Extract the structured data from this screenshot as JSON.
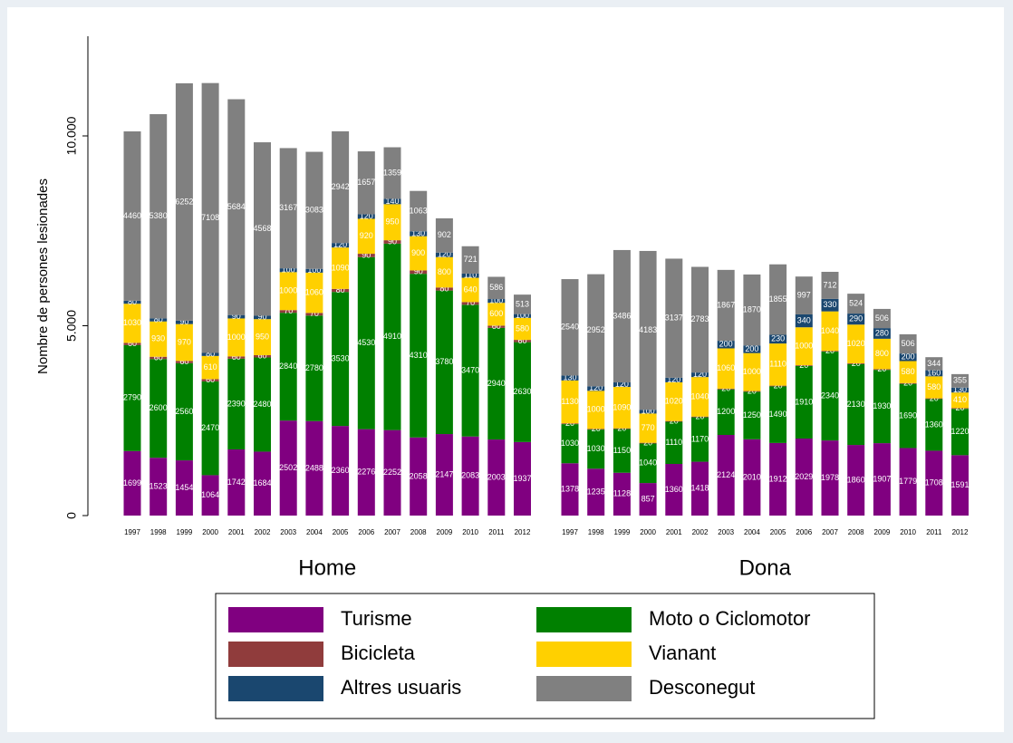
{
  "chart_data": {
    "type": "stacked-bar",
    "y_label": "Nombre de persones lesionades",
    "ylim": [
      0,
      12625
    ],
    "yticks": [
      0,
      {
        "value": 5000,
        "label": "5.000"
      },
      {
        "value": 10000,
        "label": "10.000"
      }
    ],
    "groups": [
      "Home",
      "Dona"
    ],
    "categories": [
      "1997",
      "1998",
      "1999",
      "2000",
      "2001",
      "2002",
      "2003",
      "2004",
      "2005",
      "2006",
      "2007",
      "2008",
      "2009",
      "2010",
      "2011",
      "2012"
    ],
    "series": [
      {
        "name": "Turisme",
        "color": "#800080",
        "values": [
          [
            1699,
            1523,
            1454,
            1064,
            1742,
            1684,
            2502,
            2488,
            2360,
            2276,
            2252,
            2058,
            2147,
            2083,
            2003,
            1937
          ],
          [
            1378,
            1235,
            1128,
            857,
            1360,
            1418,
            2124,
            2010,
            1912,
            2029,
            1978,
            1860,
            1907,
            1779,
            1708,
            1591
          ]
        ]
      },
      {
        "name": "Moto o Ciclomotor",
        "color": "#008000",
        "values": [
          [
            2790,
            2600,
            2560,
            2470,
            2390,
            2480,
            2840,
            2780,
            3530,
            4530,
            4910,
            4310,
            3780,
            3470,
            2940,
            2630
          ],
          [
            1030,
            1030,
            1150,
            1040,
            1110,
            1170,
            1200,
            1250,
            1490,
            1910,
            2340,
            2130,
            1930,
            1690,
            1360,
            1220
          ]
        ]
      },
      {
        "name": "Bicicleta",
        "color": "#903c3c",
        "values": [
          [
            60,
            60,
            60,
            60,
            60,
            60,
            70,
            70,
            80,
            90,
            90,
            90,
            80,
            70,
            60,
            60
          ],
          [
            20,
            20,
            20,
            20,
            20,
            20,
            20,
            20,
            20,
            20,
            20,
            20,
            20,
            20,
            20,
            20
          ]
        ]
      },
      {
        "name": "Vianant",
        "color": "#ffd000",
        "values": [
          [
            1030,
            930,
            970,
            610,
            1000,
            950,
            1000,
            1060,
            1090,
            920,
            950,
            900,
            800,
            640,
            600,
            580
          ],
          [
            1130,
            1000,
            1090,
            770,
            1020,
            1040,
            1060,
            1000,
            1110,
            1000,
            1040,
            1020,
            800,
            580,
            580,
            410
          ]
        ]
      },
      {
        "name": "Altres usuaris",
        "color": "#1a476f",
        "values": [
          [
            80,
            80,
            90,
            80,
            90,
            90,
            100,
            100,
            120,
            120,
            140,
            130,
            120,
            110,
            100,
            100
          ],
          [
            130,
            120,
            120,
            100,
            120,
            120,
            200,
            200,
            230,
            340,
            330,
            290,
            280,
            200,
            160,
            130
          ]
        ]
      },
      {
        "name": "Desconegut",
        "color": "#808080",
        "values": [
          [
            4460,
            5380,
            6252,
            7108,
            5684,
            4568,
            3167,
            3083,
            2942,
            1657,
            1359,
            1063,
            902,
            721,
            586,
            513
          ],
          [
            2540,
            2952,
            3486,
            4183,
            3137,
            2783,
            1867,
            1870,
            1855,
            997,
            712,
            524,
            506,
            506,
            344,
            355
          ]
        ]
      }
    ]
  }
}
